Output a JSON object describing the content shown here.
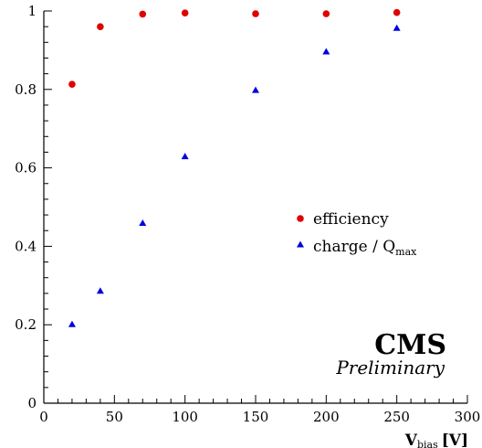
{
  "chart_data": {
    "type": "scatter",
    "xlabel_main": "V",
    "xlabel_sub": "bias",
    "xlabel_unit": "[V]",
    "xlim": [
      0,
      300
    ],
    "ylim": [
      0,
      1
    ],
    "x_ticks": [
      "0",
      "50",
      "100",
      "150",
      "200",
      "250",
      "300"
    ],
    "y_ticks": [
      "0",
      "0.2",
      "0.4",
      "0.6",
      "0.8",
      "1"
    ],
    "grid": false,
    "legend_position": "right-middle",
    "series": [
      {
        "name": "efficiency",
        "marker": "circle",
        "color": "#e00000",
        "x": [
          20,
          40,
          70,
          100,
          150,
          200,
          250
        ],
        "y": [
          0.813,
          0.96,
          0.992,
          0.995,
          0.993,
          0.993,
          0.996
        ]
      },
      {
        "name_main": "charge / Q",
        "name_sub": "max",
        "marker": "triangle",
        "color": "#0000e0",
        "x": [
          20,
          40,
          70,
          100,
          150,
          200,
          250
        ],
        "y": [
          0.2,
          0.285,
          0.458,
          0.628,
          0.797,
          0.895,
          0.955
        ]
      }
    ],
    "annotations": {
      "experiment": "CMS",
      "status": "Preliminary"
    }
  }
}
